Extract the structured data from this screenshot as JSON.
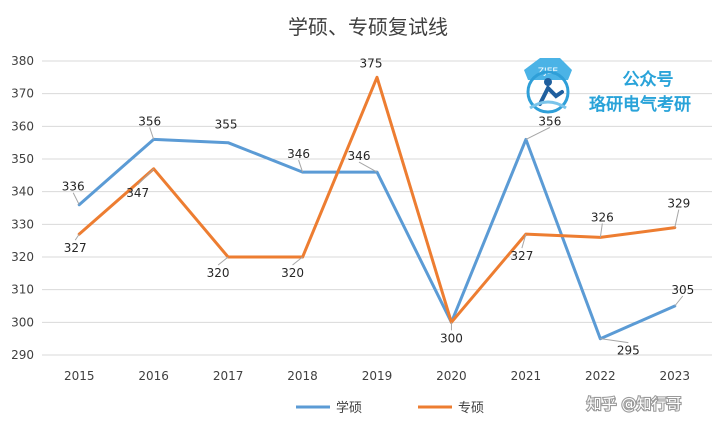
{
  "chart_data": {
    "type": "line",
    "title": "学硕、专硕复试线",
    "xlabel": "",
    "ylabel": "",
    "categories": [
      "2015",
      "2016",
      "2017",
      "2018",
      "2019",
      "2020",
      "2021",
      "2022",
      "2023"
    ],
    "ylim": [
      290,
      380
    ],
    "yticks": [
      290,
      300,
      310,
      320,
      330,
      340,
      350,
      360,
      370,
      380
    ],
    "grid": true,
    "legend_position": "bottom",
    "series": [
      {
        "name": "学硕",
        "color": "#5b9bd5",
        "values": [
          336,
          356,
          355,
          346,
          346,
          300,
          356,
          295,
          305
        ]
      },
      {
        "name": "专硕",
        "color": "#ed7d31",
        "values": [
          327,
          347,
          320,
          320,
          375,
          300,
          327,
          326,
          329
        ]
      }
    ]
  },
  "watermark": {
    "line1": "公众号",
    "line2": "珞研电气考研",
    "footer": "知乎 @知行哥"
  }
}
